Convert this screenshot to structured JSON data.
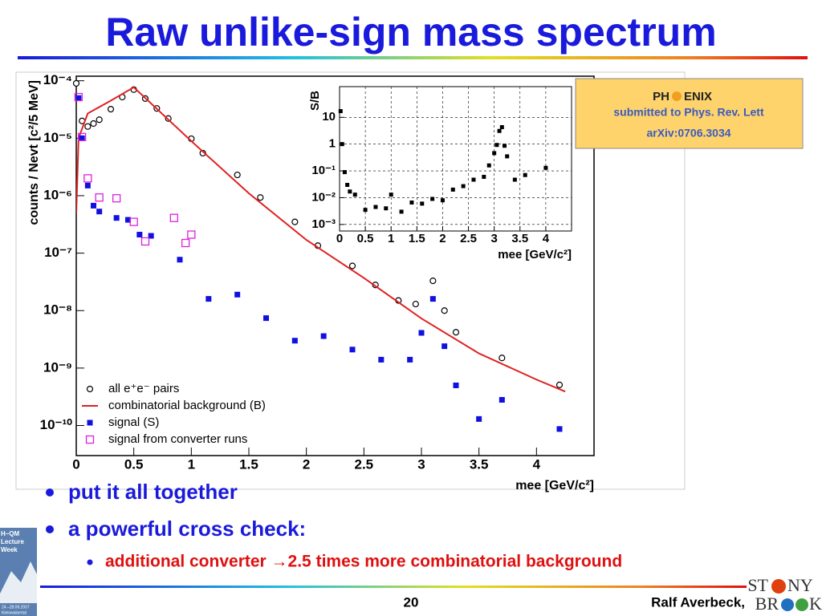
{
  "slide": {
    "title": "Raw unlike-sign mass spectrum",
    "bullets": [
      "put it all together",
      "a powerful cross check:"
    ],
    "sub_bullet": "additional converter →2.5 times more combinatorial background",
    "page_number": "20",
    "author": "Ralf Averbeck,",
    "logo": {
      "top_left": "ST",
      "top_right": "NY",
      "bottom_left": "BR",
      "bottom_right": "K"
    },
    "sidebar": {
      "title": "H–QM Lecture Week",
      "dates": "24.–28.09.2007",
      "place": "Kleinwalsertal"
    },
    "note": {
      "logo_left": "PH",
      "logo_right": "ENIX",
      "line1": "submitted to Phys. Rev. Lett",
      "line2": "arXiv:0706.3034"
    }
  },
  "chart_data": [
    {
      "type": "scatter",
      "log_y": true,
      "legend": "lower left",
      "xlabel": "mee [GeV/c²]",
      "ylabel": "counts / Nevt [c²/5 MeV]",
      "xlim": [
        0,
        4.5
      ],
      "ylim": [
        3e-11,
        0.00012
      ],
      "xticks": [
        0,
        0.5,
        1,
        1.5,
        2,
        2.5,
        3,
        3.5,
        4
      ],
      "yticks": [
        {
          "value": 1e-10,
          "label": "10⁻¹⁰"
        },
        {
          "value": 1e-09,
          "label": "10⁻⁹"
        },
        {
          "value": 1e-08,
          "label": "10⁻⁸"
        },
        {
          "value": 1e-07,
          "label": "10⁻⁷"
        },
        {
          "value": 1e-06,
          "label": "10⁻⁶"
        },
        {
          "value": 1e-05,
          "label": "10⁻⁵"
        },
        {
          "value": 0.0001,
          "label": "10⁻⁴"
        }
      ],
      "series": [
        {
          "name": "all e⁺e⁻ pairs",
          "color": "#000000",
          "marker": "open-circle",
          "x": [
            0,
            0.05,
            0.1,
            0.15,
            0.2,
            0.3,
            0.4,
            0.5,
            0.6,
            0.7,
            0.8,
            1.0,
            1.1,
            1.4,
            1.6,
            1.9,
            2.1,
            2.4,
            2.6,
            2.8,
            2.95,
            3.1,
            3.2,
            3.3,
            3.7,
            4.2
          ],
          "values": [
            9e-05,
            2e-05,
            1.6e-05,
            1.8e-05,
            2.1e-05,
            3.2e-05,
            5.2e-05,
            7e-05,
            4.9e-05,
            3.3e-05,
            2.2e-05,
            9.8e-06,
            5.5e-06,
            2.3e-06,
            9.3e-07,
            3.5e-07,
            1.35e-07,
            6e-08,
            2.8e-08,
            1.5e-08,
            1.3e-08,
            3.3e-08,
            1e-08,
            4.2e-09,
            1.5e-09,
            5.1e-10
          ]
        },
        {
          "name": "combinatorial background (B)",
          "color": "#e02020",
          "marker": "line",
          "x": [
            0,
            0.02,
            0.1,
            0.3,
            0.5,
            1.0,
            1.5,
            2.0,
            2.5,
            3.0,
            3.5,
            4.0,
            4.25
          ],
          "values": [
            4.9e-07,
            1e-05,
            2.7e-05,
            4.5e-05,
            7.7e-05,
            8.9e-06,
            1.1e-06,
            1.7e-07,
            3.7e-08,
            7.3e-09,
            1.8e-09,
            6.3e-10,
            3.9e-10
          ]
        },
        {
          "name": "signal (S)",
          "color": "#1010e0",
          "marker": "filled-square",
          "x": [
            0.02,
            0.05,
            0.1,
            0.15,
            0.2,
            0.35,
            0.45,
            0.55,
            0.65,
            0.9,
            1.15,
            1.4,
            1.65,
            1.9,
            2.15,
            2.4,
            2.65,
            2.9,
            3.0,
            3.1,
            3.2,
            3.3,
            3.5,
            3.7,
            4.2
          ],
          "values": [
            5e-05,
            1e-05,
            1.5e-06,
            6.7e-07,
            5.3e-07,
            4.1e-07,
            3.8e-07,
            2.1e-07,
            2e-07,
            7.7e-08,
            1.6e-08,
            1.9e-08,
            7.4e-09,
            3e-09,
            3.6e-09,
            2.1e-09,
            1.4e-09,
            1.4e-09,
            4.1e-09,
            1.6e-08,
            2.4e-09,
            5e-10,
            1.3e-10,
            2.8e-10,
            8.7e-11
          ]
        },
        {
          "name": "signal from converter runs",
          "color": "#e020e0",
          "marker": "open-square",
          "x": [
            0.02,
            0.05,
            0.1,
            0.2,
            0.35,
            0.5,
            0.6,
            0.85,
            0.95,
            1.0
          ],
          "values": [
            5.2e-05,
            1.05e-05,
            2e-06,
            9.3e-07,
            9e-07,
            3.5e-07,
            1.6e-07,
            4.1e-07,
            1.5e-07,
            2.1e-07
          ]
        }
      ]
    },
    {
      "type": "scatter",
      "log_y": true,
      "grid": true,
      "xlabel": "mee [GeV/c²]",
      "ylabel": "S/B",
      "xlim": [
        0,
        4.5
      ],
      "ylim": [
        0.00057,
        140
      ],
      "xticks": [
        0,
        0.5,
        1,
        1.5,
        2,
        2.5,
        3,
        3.5,
        4
      ],
      "yticks": [
        {
          "value": 0.001,
          "label": "10⁻³"
        },
        {
          "value": 0.01,
          "label": "10⁻²"
        },
        {
          "value": 0.1,
          "label": "10⁻¹"
        },
        1,
        10
      ],
      "series": [
        {
          "color": "#000000",
          "marker": "dot",
          "x": [
            0.02,
            0.05,
            0.1,
            0.15,
            0.2,
            0.3,
            0.5,
            0.7,
            0.9,
            1.0,
            1.2,
            1.4,
            1.6,
            1.8,
            2.0,
            2.2,
            2.4,
            2.6,
            2.8,
            2.9,
            3.0,
            3.05,
            3.1,
            3.15,
            3.2,
            3.25,
            3.4,
            3.6,
            4.0
          ],
          "values": [
            17,
            1,
            0.09,
            0.03,
            0.017,
            0.013,
            0.0035,
            0.0045,
            0.004,
            0.013,
            0.003,
            0.0066,
            0.006,
            0.009,
            0.008,
            0.02,
            0.027,
            0.047,
            0.06,
            0.16,
            0.46,
            0.93,
            3.1,
            4.3,
            0.87,
            0.35,
            0.047,
            0.07,
            0.13
          ]
        }
      ]
    }
  ]
}
